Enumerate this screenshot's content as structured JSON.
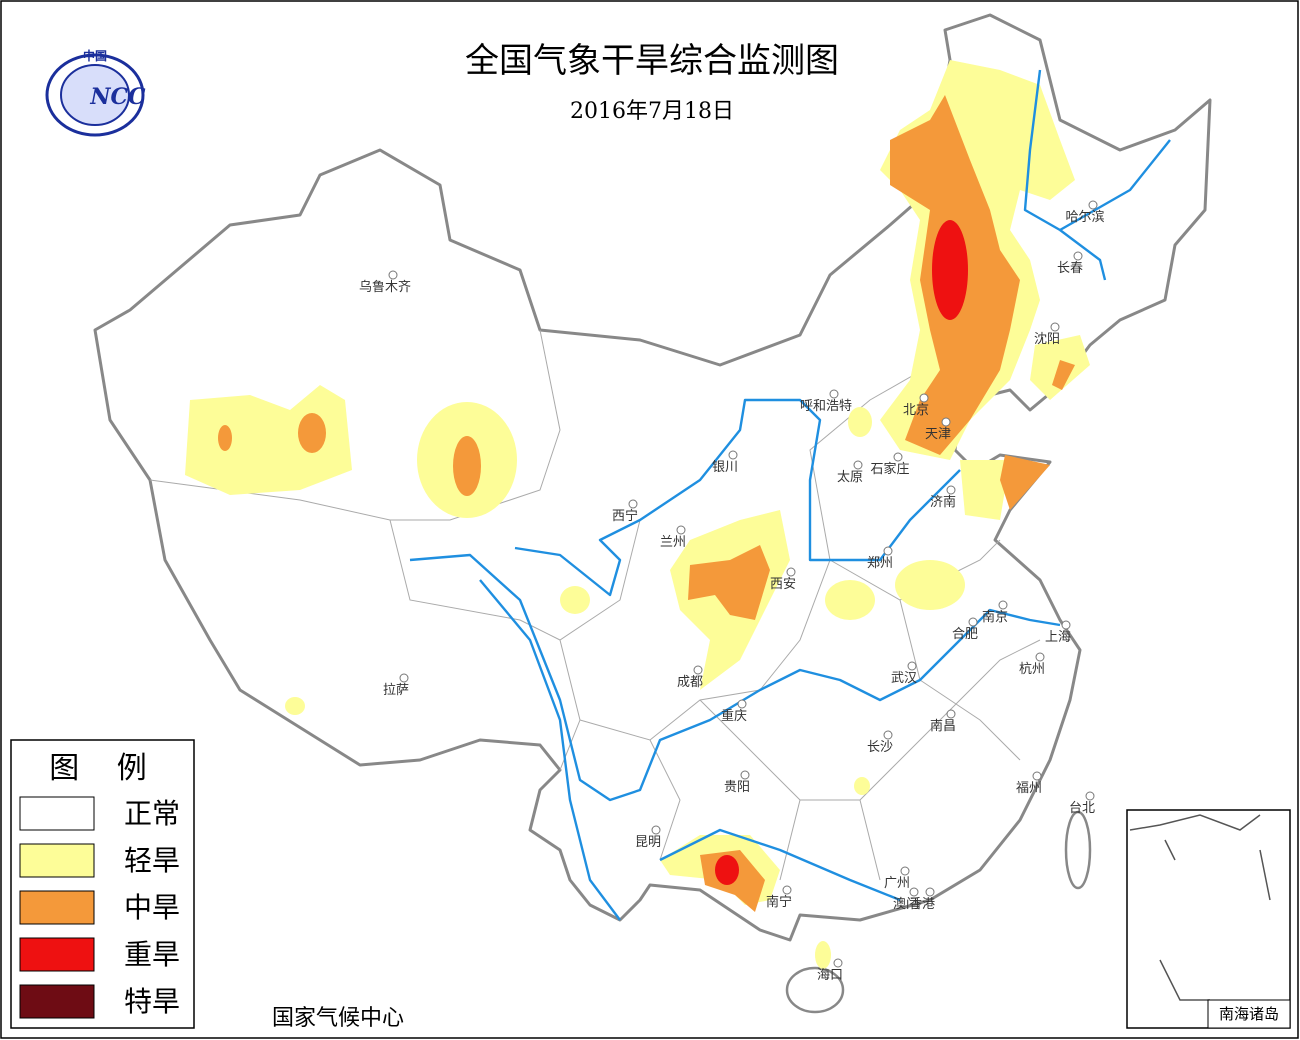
{
  "header": {
    "title": "全国气象干旱综合监测图",
    "date": "2016年7月18日"
  },
  "logo": {
    "top": "中国",
    "name": "NCC"
  },
  "legend": {
    "title": "图 例",
    "items": [
      {
        "label": "正常",
        "color": "#ffffff"
      },
      {
        "label": "轻旱",
        "color": "#fdfd98"
      },
      {
        "label": "中旱",
        "color": "#f4993a"
      },
      {
        "label": "重旱",
        "color": "#ee1111"
      },
      {
        "label": "特旱",
        "color": "#6e0c14"
      }
    ]
  },
  "cities": [
    "乌鲁木齐",
    "哈尔滨",
    "长春",
    "沈阳",
    "呼和浩特",
    "北京",
    "天津",
    "银川",
    "太原",
    "石家庄",
    "济南",
    "西宁",
    "兰州",
    "郑州",
    "西安",
    "南京",
    "合肥",
    "上海",
    "成都",
    "武汉",
    "杭州",
    "拉萨",
    "重庆",
    "南昌",
    "长沙",
    "贵阳",
    "福州",
    "台北",
    "昆明",
    "广州",
    "南宁",
    "澳门",
    "香港",
    "海口"
  ],
  "inset": {
    "label": "南海诸岛"
  },
  "footer": "国家气候中心"
}
